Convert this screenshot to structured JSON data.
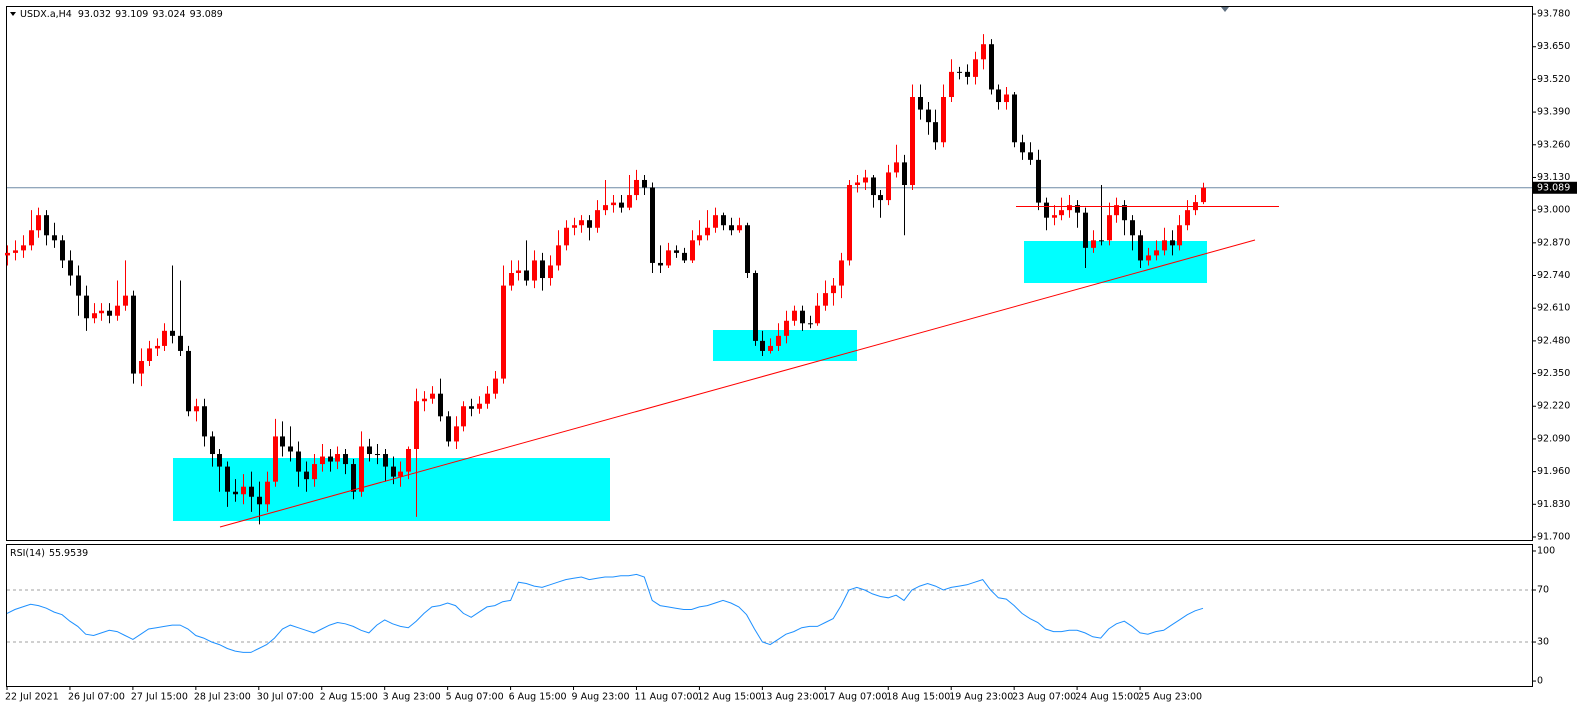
{
  "chart_data": {
    "type": "candlestick",
    "symbol": "USDX.a,H4",
    "categories": [
      "22 Jul 2021",
      null,
      null,
      null,
      null,
      null,
      null,
      null,
      "26 Jul 07:00",
      null,
      null,
      null,
      null,
      null,
      null,
      null,
      "27 Jul 15:00",
      null,
      null,
      null,
      null,
      null,
      null,
      null,
      "28 Jul 23:00",
      null,
      null,
      null,
      null,
      null,
      null,
      null,
      "30 Jul 07:00",
      null,
      null,
      null,
      null,
      null,
      null,
      null,
      "2 Aug 15:00",
      null,
      null,
      null,
      null,
      null,
      null,
      null,
      "3 Aug 23:00",
      null,
      null,
      null,
      null,
      null,
      null,
      null,
      "5 Aug 07:00",
      null,
      null,
      null,
      null,
      null,
      null,
      null,
      "6 Aug 15:00",
      null,
      null,
      null,
      null,
      null,
      null,
      null,
      "9 Aug 23:00",
      null,
      null,
      null,
      null,
      null,
      null,
      null,
      "11 Aug 07:00",
      null,
      null,
      null,
      null,
      null,
      null,
      null,
      "12 Aug 15:00",
      null,
      null,
      null,
      null,
      null,
      null,
      null,
      "13 Aug 23:00",
      null,
      null,
      null,
      null,
      null,
      null,
      null,
      "17 Aug 07:00",
      null,
      null,
      null,
      null,
      null,
      null,
      null,
      "18 Aug 15:00",
      null,
      null,
      null,
      null,
      null,
      null,
      null,
      "19 Aug 23:00",
      null,
      null,
      null,
      null,
      null,
      null,
      null,
      "23 Aug 07:00",
      null,
      null,
      null,
      null,
      null,
      null,
      null,
      "24 Aug 15:00",
      null,
      null,
      null,
      null,
      null,
      null,
      null,
      "25 Aug 23:00",
      null,
      null,
      null,
      null,
      null,
      null,
      null,
      null
    ],
    "ohlc": [
      [
        92.82,
        92.86,
        92.78,
        92.83
      ],
      [
        92.83,
        92.88,
        92.8,
        92.84
      ],
      [
        92.84,
        92.9,
        92.81,
        92.86
      ],
      [
        92.86,
        93.0,
        92.84,
        92.92
      ],
      [
        92.92,
        93.01,
        92.89,
        92.98
      ],
      [
        92.98,
        93.0,
        92.86,
        92.9
      ],
      [
        92.9,
        92.95,
        92.85,
        92.88
      ],
      [
        92.88,
        92.9,
        92.77,
        92.8
      ],
      [
        92.8,
        92.84,
        92.7,
        92.74
      ],
      [
        92.74,
        92.78,
        92.58,
        92.66
      ],
      [
        92.66,
        92.7,
        92.52,
        92.57
      ],
      [
        92.57,
        92.63,
        92.55,
        92.59
      ],
      [
        92.59,
        92.63,
        92.56,
        92.6
      ],
      [
        92.6,
        92.63,
        92.55,
        92.58
      ],
      [
        92.58,
        92.72,
        92.56,
        92.62
      ],
      [
        92.62,
        92.8,
        92.6,
        92.66
      ],
      [
        92.66,
        92.68,
        92.31,
        92.35
      ],
      [
        92.35,
        92.45,
        92.3,
        92.4
      ],
      [
        92.4,
        92.48,
        92.38,
        92.45
      ],
      [
        92.45,
        92.49,
        92.42,
        92.46
      ],
      [
        92.46,
        92.55,
        92.44,
        92.52
      ],
      [
        92.52,
        92.78,
        92.47,
        92.5
      ],
      [
        92.5,
        92.72,
        92.42,
        92.44
      ],
      [
        92.44,
        92.46,
        92.18,
        92.2
      ],
      [
        92.2,
        92.25,
        92.16,
        92.22
      ],
      [
        92.22,
        92.25,
        92.06,
        92.1
      ],
      [
        92.1,
        92.12,
        91.98,
        92.03
      ],
      [
        92.03,
        92.05,
        91.88,
        91.98
      ],
      [
        91.98,
        92.0,
        91.82,
        91.88
      ],
      [
        91.88,
        91.93,
        91.84,
        91.87
      ],
      [
        91.87,
        91.95,
        91.83,
        91.9
      ],
      [
        91.9,
        91.96,
        91.8,
        91.86
      ],
      [
        91.86,
        91.92,
        91.75,
        91.83
      ],
      [
        91.83,
        91.96,
        91.8,
        91.92
      ],
      [
        91.92,
        92.17,
        91.9,
        92.1
      ],
      [
        92.1,
        92.16,
        92.02,
        92.06
      ],
      [
        92.06,
        92.14,
        92.0,
        92.04
      ],
      [
        92.04,
        92.08,
        91.9,
        91.96
      ],
      [
        91.96,
        92.0,
        91.88,
        91.93
      ],
      [
        91.93,
        92.03,
        91.9,
        91.99
      ],
      [
        91.99,
        92.07,
        91.96,
        92.02
      ],
      [
        92.02,
        92.05,
        91.96,
        92.0
      ],
      [
        92.0,
        92.06,
        91.97,
        92.03
      ],
      [
        92.03,
        92.05,
        91.95,
        91.99
      ],
      [
        91.99,
        92.01,
        91.85,
        91.88
      ],
      [
        91.88,
        92.12,
        91.86,
        92.06
      ],
      [
        92.06,
        92.09,
        92.0,
        92.03
      ],
      [
        92.03,
        92.07,
        91.99,
        92.03
      ],
      [
        92.03,
        92.05,
        91.92,
        91.98
      ],
      [
        91.98,
        92.02,
        91.91,
        91.94
      ],
      [
        91.94,
        92.0,
        91.9,
        91.96
      ],
      [
        91.96,
        92.06,
        91.93,
        92.05
      ],
      [
        92.05,
        92.29,
        91.78,
        92.24
      ],
      [
        92.24,
        92.28,
        92.2,
        92.25
      ],
      [
        92.25,
        92.3,
        92.23,
        92.27
      ],
      [
        92.27,
        92.33,
        92.16,
        92.18
      ],
      [
        92.18,
        92.2,
        92.06,
        92.08
      ],
      [
        92.08,
        92.18,
        92.05,
        92.14
      ],
      [
        92.14,
        92.24,
        92.12,
        92.22
      ],
      [
        92.22,
        92.25,
        92.18,
        92.21
      ],
      [
        92.21,
        92.26,
        92.19,
        92.23
      ],
      [
        92.23,
        92.3,
        92.21,
        92.27
      ],
      [
        92.27,
        92.36,
        92.25,
        92.33
      ],
      [
        92.33,
        92.78,
        92.31,
        92.7
      ],
      [
        92.7,
        92.8,
        92.68,
        92.75
      ],
      [
        92.75,
        92.8,
        92.72,
        92.76
      ],
      [
        92.76,
        92.88,
        92.7,
        92.72
      ],
      [
        92.72,
        92.84,
        92.69,
        92.8
      ],
      [
        92.8,
        92.83,
        92.68,
        92.73
      ],
      [
        92.73,
        92.82,
        92.7,
        92.78
      ],
      [
        92.78,
        92.92,
        92.76,
        92.86
      ],
      [
        92.86,
        92.96,
        92.84,
        92.93
      ],
      [
        92.93,
        92.97,
        92.9,
        92.94
      ],
      [
        92.94,
        92.98,
        92.91,
        92.96
      ],
      [
        92.96,
        92.98,
        92.88,
        92.93
      ],
      [
        92.93,
        93.04,
        92.91,
        93.0
      ],
      [
        93.0,
        93.12,
        92.98,
        93.02
      ],
      [
        93.02,
        93.06,
        92.99,
        93.03
      ],
      [
        93.03,
        93.06,
        92.99,
        93.01
      ],
      [
        93.01,
        93.14,
        93.0,
        93.06
      ],
      [
        93.06,
        93.16,
        93.04,
        93.12
      ],
      [
        93.12,
        93.14,
        93.06,
        93.09
      ],
      [
        93.09,
        93.11,
        92.75,
        92.79
      ],
      [
        92.79,
        92.86,
        92.75,
        92.78
      ],
      [
        92.78,
        92.87,
        92.77,
        92.84
      ],
      [
        92.84,
        92.86,
        92.81,
        92.83
      ],
      [
        92.83,
        92.85,
        92.79,
        92.8
      ],
      [
        92.8,
        92.92,
        92.79,
        92.88
      ],
      [
        92.88,
        92.96,
        92.86,
        92.9
      ],
      [
        92.9,
        93.0,
        92.88,
        92.93
      ],
      [
        92.93,
        93.01,
        92.91,
        92.98
      ],
      [
        92.98,
        92.99,
        92.92,
        92.94
      ],
      [
        92.94,
        92.97,
        92.9,
        92.92
      ],
      [
        92.92,
        92.97,
        92.91,
        92.94
      ],
      [
        92.94,
        92.95,
        92.73,
        92.75
      ],
      [
        92.75,
        92.76,
        92.46,
        92.48
      ],
      [
        92.48,
        92.52,
        92.42,
        92.44
      ],
      [
        92.44,
        92.49,
        92.43,
        92.46
      ],
      [
        92.46,
        92.55,
        92.44,
        92.5
      ],
      [
        92.5,
        92.6,
        92.47,
        92.56
      ],
      [
        92.56,
        92.62,
        92.54,
        92.6
      ],
      [
        92.6,
        92.62,
        92.52,
        92.55
      ],
      [
        92.55,
        92.58,
        92.53,
        92.55
      ],
      [
        92.55,
        92.67,
        92.54,
        92.62
      ],
      [
        92.62,
        92.72,
        92.6,
        92.67
      ],
      [
        92.67,
        92.73,
        92.62,
        92.7
      ],
      [
        92.7,
        92.83,
        92.65,
        92.8
      ],
      [
        92.8,
        93.12,
        92.78,
        93.1
      ],
      [
        93.1,
        93.14,
        93.07,
        93.11
      ],
      [
        93.11,
        93.16,
        93.08,
        93.13
      ],
      [
        93.13,
        93.14,
        93.01,
        93.06
      ],
      [
        93.06,
        93.08,
        92.97,
        93.04
      ],
      [
        93.04,
        93.18,
        93.02,
        93.15
      ],
      [
        93.15,
        93.26,
        93.13,
        93.19
      ],
      [
        93.19,
        93.22,
        92.9,
        93.1
      ],
      [
        93.1,
        93.5,
        93.08,
        93.45
      ],
      [
        93.45,
        93.5,
        93.36,
        93.4
      ],
      [
        93.4,
        93.43,
        93.3,
        93.35
      ],
      [
        93.35,
        93.4,
        93.24,
        93.27
      ],
      [
        93.27,
        93.5,
        93.25,
        93.45
      ],
      [
        93.45,
        93.6,
        93.43,
        93.55
      ],
      [
        93.55,
        93.57,
        93.52,
        93.55
      ],
      [
        93.55,
        93.58,
        93.5,
        93.53
      ],
      [
        93.53,
        93.63,
        93.5,
        93.6
      ],
      [
        93.6,
        93.7,
        93.56,
        93.66
      ],
      [
        93.66,
        93.68,
        93.46,
        93.48
      ],
      [
        93.48,
        93.5,
        93.4,
        93.43
      ],
      [
        93.43,
        93.49,
        93.4,
        93.46
      ],
      [
        93.46,
        93.47,
        93.25,
        93.27
      ],
      [
        93.27,
        93.3,
        93.2,
        93.23
      ],
      [
        93.23,
        93.27,
        93.18,
        93.2
      ],
      [
        93.2,
        93.24,
        93.0,
        93.03
      ],
      [
        93.03,
        93.05,
        92.92,
        92.97
      ],
      [
        92.97,
        93.02,
        92.94,
        92.98
      ],
      [
        92.98,
        93.05,
        92.96,
        93.0
      ],
      [
        93.0,
        93.06,
        92.97,
        93.02
      ],
      [
        93.02,
        93.04,
        92.93,
        92.99
      ],
      [
        92.99,
        93.01,
        92.77,
        92.85
      ],
      [
        92.85,
        92.92,
        92.83,
        92.88
      ],
      [
        92.88,
        93.1,
        92.86,
        92.88
      ],
      [
        92.88,
        93.03,
        92.86,
        92.98
      ],
      [
        92.98,
        93.05,
        92.95,
        93.02
      ],
      [
        93.02,
        93.04,
        92.9,
        92.96
      ],
      [
        92.96,
        92.98,
        92.84,
        92.9
      ],
      [
        92.9,
        92.92,
        92.77,
        92.8
      ],
      [
        92.8,
        92.85,
        92.78,
        92.82
      ],
      [
        92.82,
        92.88,
        92.8,
        92.84
      ],
      [
        92.84,
        92.93,
        92.82,
        92.88
      ],
      [
        92.88,
        92.92,
        92.82,
        92.86
      ],
      [
        92.86,
        92.98,
        92.84,
        92.94
      ],
      [
        92.94,
        93.04,
        92.92,
        93.0
      ],
      [
        93.0,
        93.06,
        92.98,
        93.032
      ],
      [
        93.032,
        93.109,
        93.024,
        93.089
      ]
    ],
    "up_color": "#ff0000",
    "down_color": "#000000",
    "price_line_color": "#6f8aa5",
    "ylim": [
      91.688,
      93.812
    ],
    "yticks": [
      {
        "value": 93.78,
        "label": "93.780"
      },
      {
        "value": 93.65,
        "label": "93.650"
      },
      {
        "value": 93.52,
        "label": "93.520"
      },
      {
        "value": 93.39,
        "label": "93.390"
      },
      {
        "value": 93.26,
        "label": "93.260"
      },
      {
        "value": 93.13,
        "label": "93.130"
      },
      {
        "value": 93.0,
        "label": "93.000"
      },
      {
        "value": 92.87,
        "label": "92.870"
      },
      {
        "value": 92.74,
        "label": "92.740"
      },
      {
        "value": 92.61,
        "label": "92.610"
      },
      {
        "value": 92.48,
        "label": "92.480"
      },
      {
        "value": 92.35,
        "label": "92.350"
      },
      {
        "value": 92.22,
        "label": "92.220"
      },
      {
        "value": 92.09,
        "label": "92.090"
      },
      {
        "value": 91.96,
        "label": "91.960"
      },
      {
        "value": 91.83,
        "label": "91.830"
      },
      {
        "value": 91.7,
        "label": "91.700"
      }
    ],
    "grid": false,
    "rsi": {
      "type": "line",
      "name": "RSI(14)",
      "color": "#1e90ff",
      "values": [
        52,
        55,
        57,
        59,
        58,
        56,
        53,
        51,
        46,
        42,
        36,
        35,
        37,
        39,
        38,
        35,
        32,
        36,
        40,
        41,
        42,
        43,
        43,
        40,
        35,
        33,
        30,
        28,
        25,
        23,
        22,
        22,
        25,
        28,
        33,
        40,
        43,
        41,
        39,
        37,
        40,
        43,
        45,
        44,
        42,
        39,
        37,
        43,
        47,
        44,
        42,
        41,
        46,
        52,
        57,
        58,
        60,
        58,
        52,
        49,
        53,
        57,
        58,
        61,
        62,
        76,
        75,
        73,
        72,
        74,
        76,
        78,
        79,
        80,
        78,
        79,
        80,
        80,
        81,
        81,
        82,
        80,
        62,
        58,
        57,
        56,
        55,
        55,
        57,
        58,
        60,
        62,
        60,
        57,
        51,
        40,
        30,
        28,
        32,
        36,
        38,
        41,
        42,
        42,
        45,
        48,
        58,
        70,
        72,
        70,
        67,
        65,
        64,
        66,
        62,
        70,
        73,
        75,
        73,
        70,
        72,
        73,
        74,
        76,
        78,
        70,
        64,
        63,
        58,
        52,
        48,
        45,
        40,
        38,
        38,
        39,
        39,
        37,
        34,
        33,
        40,
        44,
        46,
        42,
        37,
        36,
        38,
        39,
        43,
        47,
        51,
        54,
        55.9539
      ],
      "ylim": [
        -3.8,
        104.6
      ],
      "yticks": [
        100,
        70,
        30,
        0
      ],
      "levels": [
        70,
        30
      ],
      "level_color": "#a0a0a0"
    }
  }
}
